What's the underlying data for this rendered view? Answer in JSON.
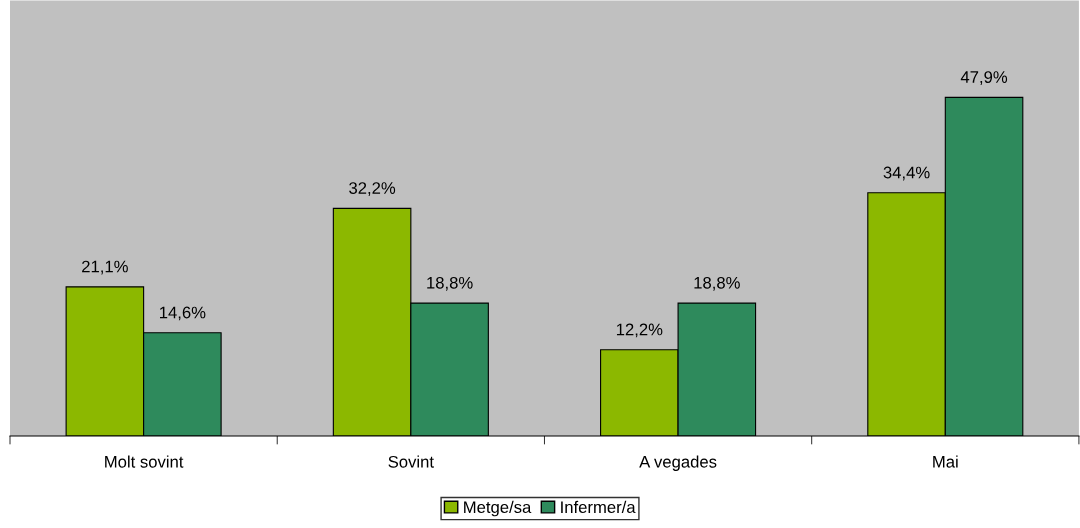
{
  "chart_data": {
    "type": "bar",
    "categories": [
      "Molt sovint",
      "Sovint",
      "A vegades",
      "Mai"
    ],
    "series": [
      {
        "name": "Metge/sa",
        "color": "#8cb800",
        "values": [
          21.1,
          32.2,
          12.2,
          34.4
        ],
        "value_labels": [
          "21,1%",
          "32,2%",
          "12,2%",
          "34,4%"
        ]
      },
      {
        "name": "Infermer/a",
        "color": "#2e8a5c",
        "values": [
          14.6,
          18.8,
          18.8,
          47.9
        ],
        "value_labels": [
          "14,6%",
          "18,8%",
          "18,8%",
          "47,9%"
        ]
      }
    ],
    "ylim": [
      0,
      61.6
    ],
    "tick_labels": "x",
    "legend": "bottom",
    "grid": false
  }
}
